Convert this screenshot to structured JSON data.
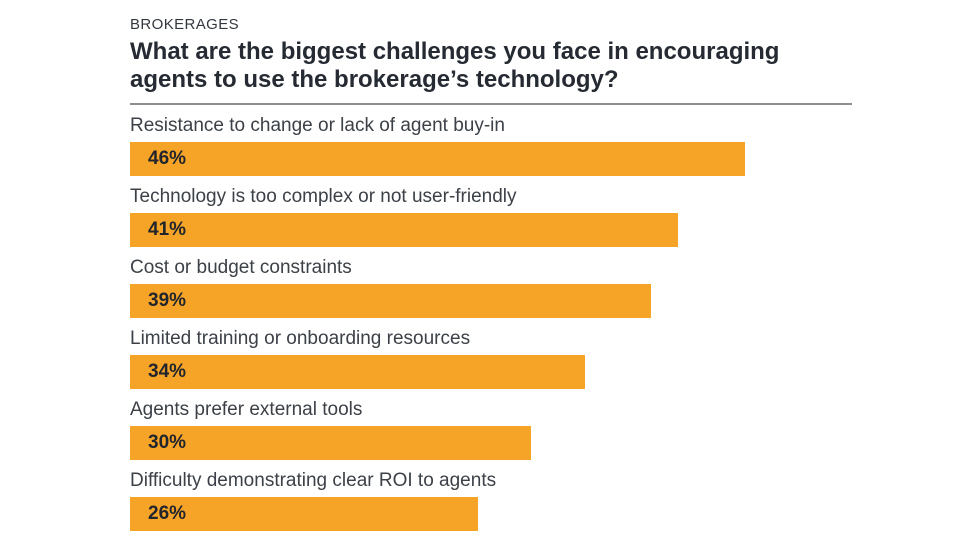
{
  "header": {
    "eyebrow": "BROKERAGES",
    "title": "What are the biggest challenges you face in encouraging agents to use the brokerage’s technology?"
  },
  "colors": {
    "background": "#FFFFFF",
    "bar": "#F6A428",
    "title_text": "#252A33",
    "eyebrow_text": "#33373E",
    "label_text": "#3C4148",
    "value_text": "#22252B",
    "divider": "#8E8E8E"
  },
  "chart_data": {
    "type": "bar",
    "orientation": "horizontal",
    "eyebrow": "BROKERAGES",
    "title": "What are the biggest challenges you face in encouraging agents to use the brokerage’s technology?",
    "categories": [
      "Resistance to change or lack of agent buy-in",
      "Technology is too complex or not user-friendly",
      "Cost or budget constraints",
      "Limited training or onboarding resources",
      "Agents prefer external tools",
      "Difficulty demonstrating clear ROI to agents"
    ],
    "values": [
      46,
      41,
      39,
      34,
      30,
      26
    ],
    "value_labels": [
      "46%",
      "41%",
      "39%",
      "34%",
      "30%",
      "26%"
    ],
    "unit": "%",
    "xlim": [
      0,
      54
    ],
    "grid": false,
    "legend": false,
    "value_label_position": "inside-left",
    "bar_color": "#F6A428"
  }
}
